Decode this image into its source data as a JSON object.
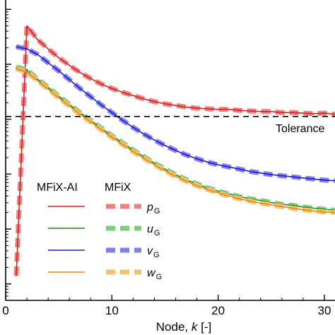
{
  "chart_data": {
    "type": "line",
    "xlabel_parts": [
      "Node, ",
      "k",
      " [-]"
    ],
    "x_ticks": [
      0,
      10,
      20,
      30
    ],
    "x_tick_labels": [
      "0",
      "10",
      "20",
      "30"
    ],
    "xlim": [
      0,
      31
    ],
    "y_scale": "log",
    "ylim_log10": [
      -7.3,
      -1.7
    ],
    "y_ticks_log10": [
      -7,
      -6,
      -5,
      -4,
      -3,
      -2
    ],
    "grid": false,
    "legend": {
      "placement": "lower-left",
      "headers": [
        "MFiX-AI",
        "MFiX"
      ]
    },
    "tolerance": {
      "label": "Tolerance",
      "log10_value": -3.95
    },
    "series": [
      {
        "name_main": "p",
        "name_sub": "G",
        "color": "#cc2222",
        "ref_color": "#ee8080",
        "x": [
          1,
          2,
          3,
          4,
          5,
          6,
          7,
          8,
          9,
          10,
          11,
          12,
          13,
          14,
          15,
          16,
          17,
          18,
          19,
          20,
          21,
          22,
          23,
          24,
          25,
          26,
          27,
          28,
          29,
          30,
          31
        ],
        "log10": [
          -6.85,
          -2.3,
          -2.55,
          -2.72,
          -2.88,
          -3.02,
          -3.15,
          -3.26,
          -3.36,
          -3.44,
          -3.51,
          -3.57,
          -3.63,
          -3.68,
          -3.72,
          -3.75,
          -3.78,
          -3.8,
          -3.81,
          -3.82,
          -3.82,
          -3.84,
          -3.85,
          -3.86,
          -3.86,
          -3.88,
          -3.88,
          -3.89,
          -3.9,
          -3.89,
          -3.91
        ]
      },
      {
        "name_main": "u",
        "name_sub": "G",
        "color": "#1f8a1f",
        "ref_color": "#7ccc7c",
        "x": [
          1,
          2,
          3,
          4,
          5,
          6,
          7,
          8,
          9,
          10,
          11,
          12,
          13,
          14,
          15,
          16,
          17,
          18,
          19,
          20,
          21,
          22,
          23,
          24,
          25,
          26,
          27,
          28,
          29,
          30,
          31
        ],
        "log10": [
          -3.05,
          -3.1,
          -3.27,
          -3.42,
          -3.58,
          -3.73,
          -3.88,
          -4.02,
          -4.16,
          -4.3,
          -4.43,
          -4.56,
          -4.68,
          -4.8,
          -4.91,
          -5.01,
          -5.1,
          -5.18,
          -5.25,
          -5.31,
          -5.36,
          -5.41,
          -5.45,
          -5.48,
          -5.52,
          -5.55,
          -5.57,
          -5.6,
          -5.62,
          -5.64,
          -5.66
        ]
      },
      {
        "name_main": "v",
        "name_sub": "G",
        "color": "#1a1acc",
        "ref_color": "#8080ee",
        "x": [
          1,
          2,
          3,
          4,
          5,
          6,
          7,
          8,
          9,
          10,
          11,
          12,
          13,
          14,
          15,
          16,
          17,
          18,
          19,
          20,
          21,
          22,
          23,
          24,
          25,
          26,
          27,
          28,
          29,
          30,
          31
        ],
        "log10": [
          -2.68,
          -2.72,
          -2.82,
          -2.97,
          -3.12,
          -3.28,
          -3.44,
          -3.59,
          -3.74,
          -3.88,
          -4.02,
          -4.15,
          -4.27,
          -4.38,
          -4.48,
          -4.57,
          -4.65,
          -4.72,
          -4.78,
          -4.83,
          -4.87,
          -4.91,
          -4.95,
          -4.98,
          -5.01,
          -5.03,
          -5.05,
          -5.07,
          -5.09,
          -5.11,
          -5.12
        ]
      },
      {
        "name_main": "w",
        "name_sub": "G",
        "color": "#e08a00",
        "ref_color": "#f5c070",
        "x": [
          1,
          2,
          3,
          4,
          5,
          6,
          7,
          8,
          9,
          10,
          11,
          12,
          13,
          14,
          15,
          16,
          17,
          18,
          19,
          20,
          21,
          22,
          23,
          24,
          25,
          26,
          27,
          28,
          29,
          30,
          31
        ],
        "log10": [
          -3.08,
          -3.14,
          -3.3,
          -3.45,
          -3.61,
          -3.76,
          -3.91,
          -4.05,
          -4.19,
          -4.33,
          -4.46,
          -4.59,
          -4.71,
          -4.83,
          -4.94,
          -5.04,
          -5.13,
          -5.21,
          -5.28,
          -5.34,
          -5.4,
          -5.45,
          -5.49,
          -5.53,
          -5.56,
          -5.59,
          -5.62,
          -5.65,
          -5.67,
          -5.69,
          -5.7
        ]
      }
    ]
  }
}
